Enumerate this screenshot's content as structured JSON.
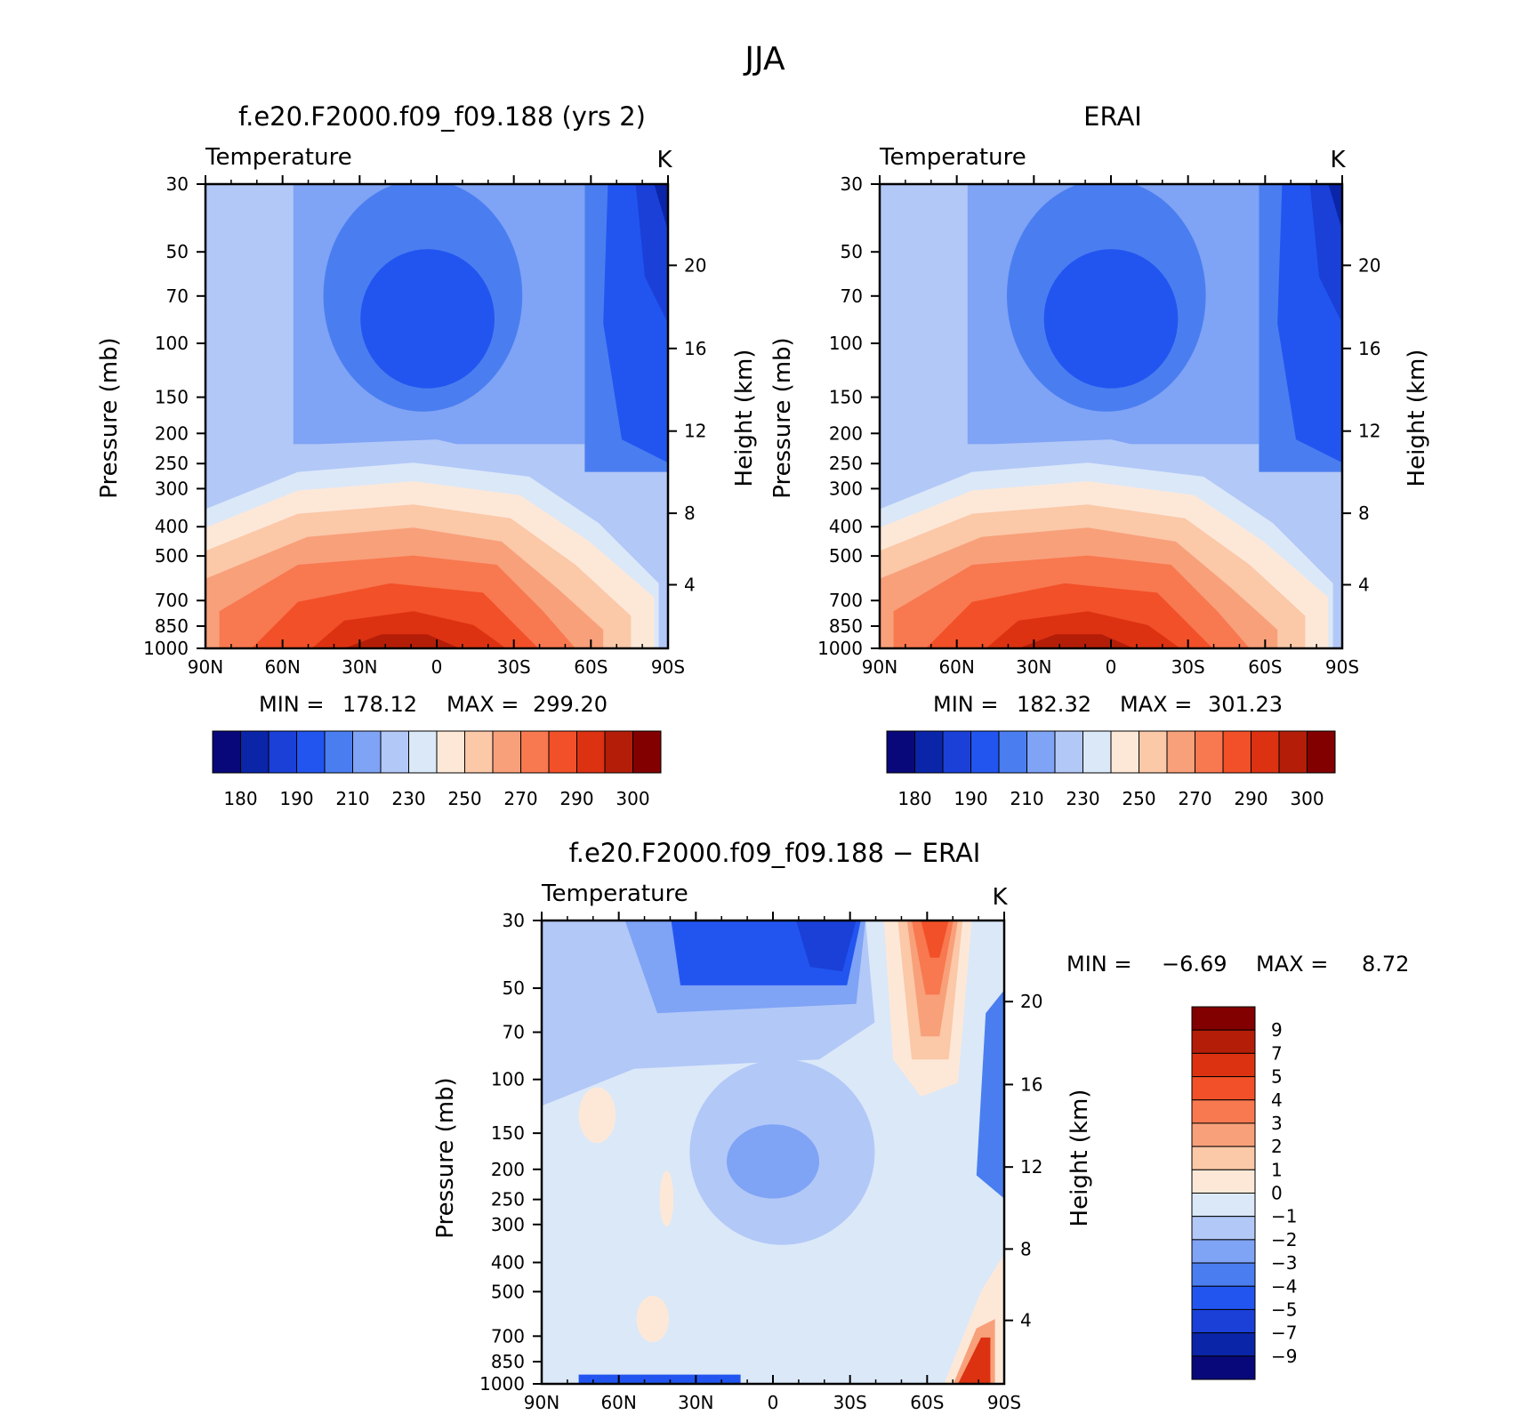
{
  "figure": {
    "title": "JJA"
  },
  "chart_data": [
    {
      "type": "heatmap",
      "title": "f.e20.F2000.f09_f09.188 (yrs 2)",
      "left_label": "Temperature",
      "right_label": "K",
      "ylabel": "Pressure (mb)",
      "ylabel2": "Height (km)",
      "x_ticks": [
        "90N",
        "60N",
        "30N",
        "0",
        "30S",
        "60S",
        "90S"
      ],
      "x": [
        90,
        60,
        30,
        0,
        -30,
        -60,
        -90
      ],
      "y_ticks": [
        "30",
        "50",
        "70",
        "100",
        "150",
        "200",
        "250",
        "300",
        "400",
        "500",
        "700",
        "850",
        "1000"
      ],
      "y": [
        30,
        50,
        70,
        100,
        150,
        200,
        250,
        300,
        400,
        500,
        700,
        850,
        1000
      ],
      "height_ticks": [
        "20",
        "16",
        "12",
        "8",
        "4"
      ],
      "heights_km": [
        20,
        16,
        12,
        8,
        4
      ],
      "min_label": "MIN =",
      "min": "178.12",
      "max_label": "MAX =",
      "max": "299.20",
      "colorbar": {
        "orientation": "horizontal",
        "labels": [
          "180",
          "190",
          "210",
          "230",
          "250",
          "270",
          "290",
          "300"
        ]
      }
    },
    {
      "type": "heatmap",
      "title": "ERAI",
      "left_label": "Temperature",
      "right_label": "K",
      "ylabel": "Pressure (mb)",
      "ylabel2": "Height (km)",
      "x_ticks": [
        "90N",
        "60N",
        "30N",
        "0",
        "30S",
        "60S",
        "90S"
      ],
      "x": [
        90,
        60,
        30,
        0,
        -30,
        -60,
        -90
      ],
      "y_ticks": [
        "30",
        "50",
        "70",
        "100",
        "150",
        "200",
        "250",
        "300",
        "400",
        "500",
        "700",
        "850",
        "1000"
      ],
      "y": [
        30,
        50,
        70,
        100,
        150,
        200,
        250,
        300,
        400,
        500,
        700,
        850,
        1000
      ],
      "height_ticks": [
        "20",
        "16",
        "12",
        "8",
        "4"
      ],
      "heights_km": [
        20,
        16,
        12,
        8,
        4
      ],
      "min_label": "MIN =",
      "min": "182.32",
      "max_label": "MAX =",
      "max": "301.23",
      "colorbar": {
        "orientation": "horizontal",
        "labels": [
          "180",
          "190",
          "210",
          "230",
          "250",
          "270",
          "290",
          "300"
        ]
      }
    },
    {
      "type": "heatmap",
      "title": "f.e20.F2000.f09_f09.188 − ERAI",
      "left_label": "Temperature",
      "right_label": "K",
      "ylabel": "Pressure (mb)",
      "ylabel2": "Height (km)",
      "x_ticks": [
        "90N",
        "60N",
        "30N",
        "0",
        "30S",
        "60S",
        "90S"
      ],
      "x": [
        90,
        60,
        30,
        0,
        -30,
        -60,
        -90
      ],
      "y_ticks": [
        "30",
        "50",
        "70",
        "100",
        "150",
        "200",
        "250",
        "300",
        "400",
        "500",
        "700",
        "850",
        "1000"
      ],
      "y": [
        30,
        50,
        70,
        100,
        150,
        200,
        250,
        300,
        400,
        500,
        700,
        850,
        1000
      ],
      "height_ticks": [
        "20",
        "16",
        "12",
        "8",
        "4"
      ],
      "heights_km": [
        20,
        16,
        12,
        8,
        4
      ],
      "min_label": "MIN =",
      "min": "−6.69",
      "max_label": "MAX =",
      "max": "8.72",
      "colorbar": {
        "orientation": "vertical",
        "labels": [
          "9",
          "7",
          "5",
          "4",
          "3",
          "2",
          "1",
          "0",
          "−1",
          "−2",
          "−3",
          "−4",
          "−5",
          "−7",
          "−9"
        ]
      }
    }
  ],
  "colors": {
    "abs_scale": [
      "#08087a",
      "#0a25a8",
      "#1a40d8",
      "#2255f0",
      "#4a7ef0",
      "#7fa3f5",
      "#b2c8f7",
      "#dbe8f8",
      "#fde8d8",
      "#fbc8a8",
      "#f8a07a",
      "#f87850",
      "#f25028",
      "#dc3212",
      "#b41e08",
      "#820000"
    ],
    "diff_scale": [
      "#820000",
      "#b41e08",
      "#dc3212",
      "#f25028",
      "#f87850",
      "#f8a07a",
      "#fbc8a8",
      "#fde8d8",
      "#dbe8f8",
      "#b2c8f7",
      "#7fa3f5",
      "#4a7ef0",
      "#2255f0",
      "#1a40d8",
      "#0a25a8",
      "#08087a"
    ]
  }
}
